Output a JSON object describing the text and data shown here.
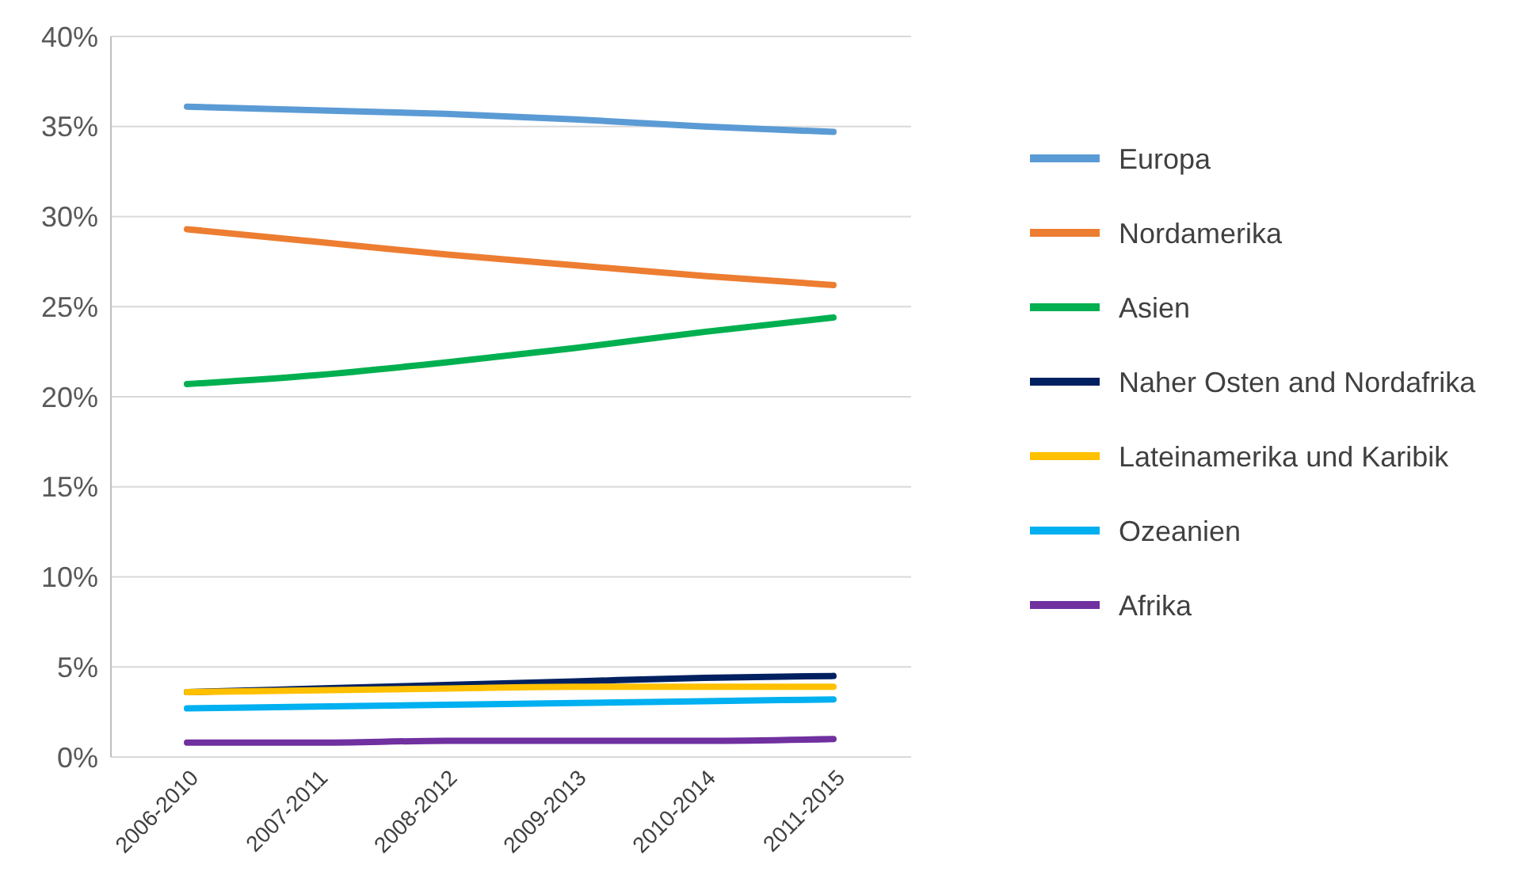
{
  "chart_data": {
    "type": "line",
    "categories": [
      "2006-2010",
      "2007-2011",
      "2008-2012",
      "2009-2013",
      "2010-2014",
      "2011-2015"
    ],
    "series": [
      {
        "name": "Europa",
        "color": "#5b9bd5",
        "values": [
          36.1,
          35.9,
          35.7,
          35.4,
          35.0,
          34.7
        ]
      },
      {
        "name": "Nordamerika",
        "color": "#ed7d31",
        "values": [
          29.3,
          28.6,
          27.9,
          27.3,
          26.7,
          26.2
        ]
      },
      {
        "name": "Asien",
        "color": "#00b050",
        "values": [
          20.7,
          21.2,
          21.9,
          22.7,
          23.6,
          24.4
        ]
      },
      {
        "name": "Naher Osten and Nordafrika",
        "color": "#002060",
        "values": [
          3.6,
          3.8,
          4.0,
          4.2,
          4.4,
          4.5
        ]
      },
      {
        "name": "Lateinamerika und Karibik",
        "color": "#ffc000",
        "values": [
          3.6,
          3.7,
          3.8,
          3.9,
          3.9,
          3.9
        ]
      },
      {
        "name": "Ozeanien",
        "color": "#00b0f0",
        "values": [
          2.7,
          2.8,
          2.9,
          3.0,
          3.1,
          3.2
        ]
      },
      {
        "name": "Afrika",
        "color": "#7030a0",
        "values": [
          0.8,
          0.8,
          0.9,
          0.9,
          0.9,
          1.0
        ]
      }
    ],
    "ylim": [
      0,
      40
    ],
    "yticks": [
      {
        "value": 0,
        "label": "0%"
      },
      {
        "value": 5,
        "label": "5%"
      },
      {
        "value": 10,
        "label": "10%"
      },
      {
        "value": 15,
        "label": "15%"
      },
      {
        "value": 20,
        "label": "20%"
      },
      {
        "value": 25,
        "label": "25%"
      },
      {
        "value": 30,
        "label": "30%"
      },
      {
        "value": 35,
        "label": "35%"
      },
      {
        "value": 40,
        "label": "40%"
      }
    ],
    "grid": "y",
    "legend": "right",
    "marker": "none",
    "line_style": "solid"
  }
}
